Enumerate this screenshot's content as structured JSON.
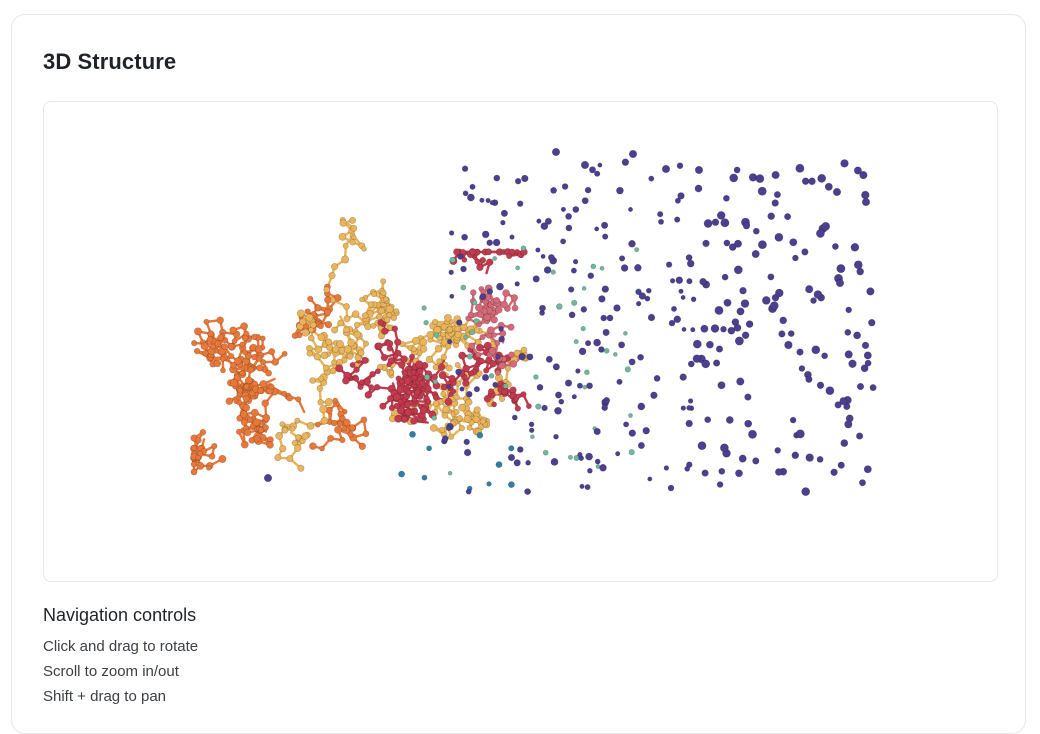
{
  "card": {
    "title": "3D Structure"
  },
  "viewer": {
    "colors": {
      "sidechain_orange": "#e8783a",
      "backbone_gold": "#e9b45a",
      "helix_crimson": "#c23a4e",
      "loop_pink": "#d46a78",
      "solvent_indigo": "#4b3f8f",
      "ligand_teal": "#6fb89a",
      "ion_blue": "#2f7ea6"
    }
  },
  "navigation": {
    "title": "Navigation controls",
    "lines": [
      "Click and drag to rotate",
      "Scroll to zoom in/out",
      "Shift + drag to pan"
    ]
  }
}
